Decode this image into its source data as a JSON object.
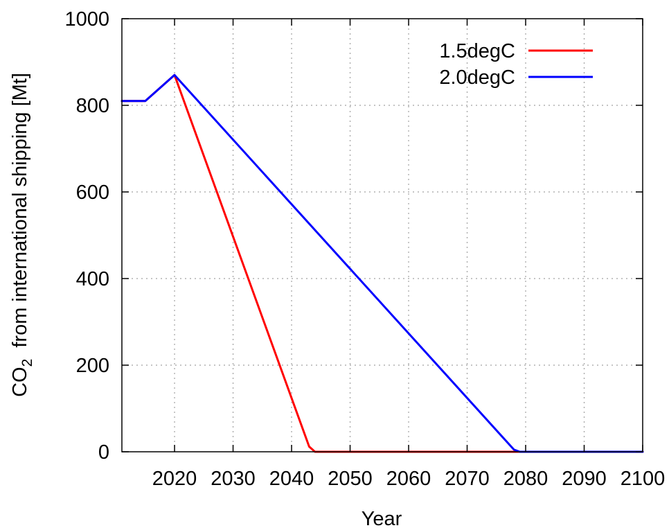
{
  "chart_data": {
    "type": "line",
    "title": "",
    "xlabel": "Year",
    "ylabel_main": "CO",
    "ylabel_sub": "2",
    "ylabel_rest": "  from international shipping [Mt]",
    "xlim": [
      2011,
      2100
    ],
    "ylim": [
      0,
      1000
    ],
    "xticks": [
      2020,
      2030,
      2040,
      2050,
      2060,
      2070,
      2080,
      2090,
      2100
    ],
    "yticks": [
      0,
      200,
      400,
      600,
      800,
      1000
    ],
    "grid": true,
    "legend_position": "top-right",
    "series": [
      {
        "name": "1.5degC",
        "color": "#ff0000",
        "x": [
          2011,
          2015,
          2020,
          2043,
          2044,
          2100
        ],
        "y": [
          810,
          810,
          870,
          12,
          0,
          0
        ]
      },
      {
        "name": "2.0degC",
        "color": "#0000ff",
        "x": [
          2011,
          2015,
          2020,
          2078,
          2079,
          2100
        ],
        "y": [
          810,
          810,
          870,
          5,
          0,
          0
        ]
      }
    ]
  }
}
